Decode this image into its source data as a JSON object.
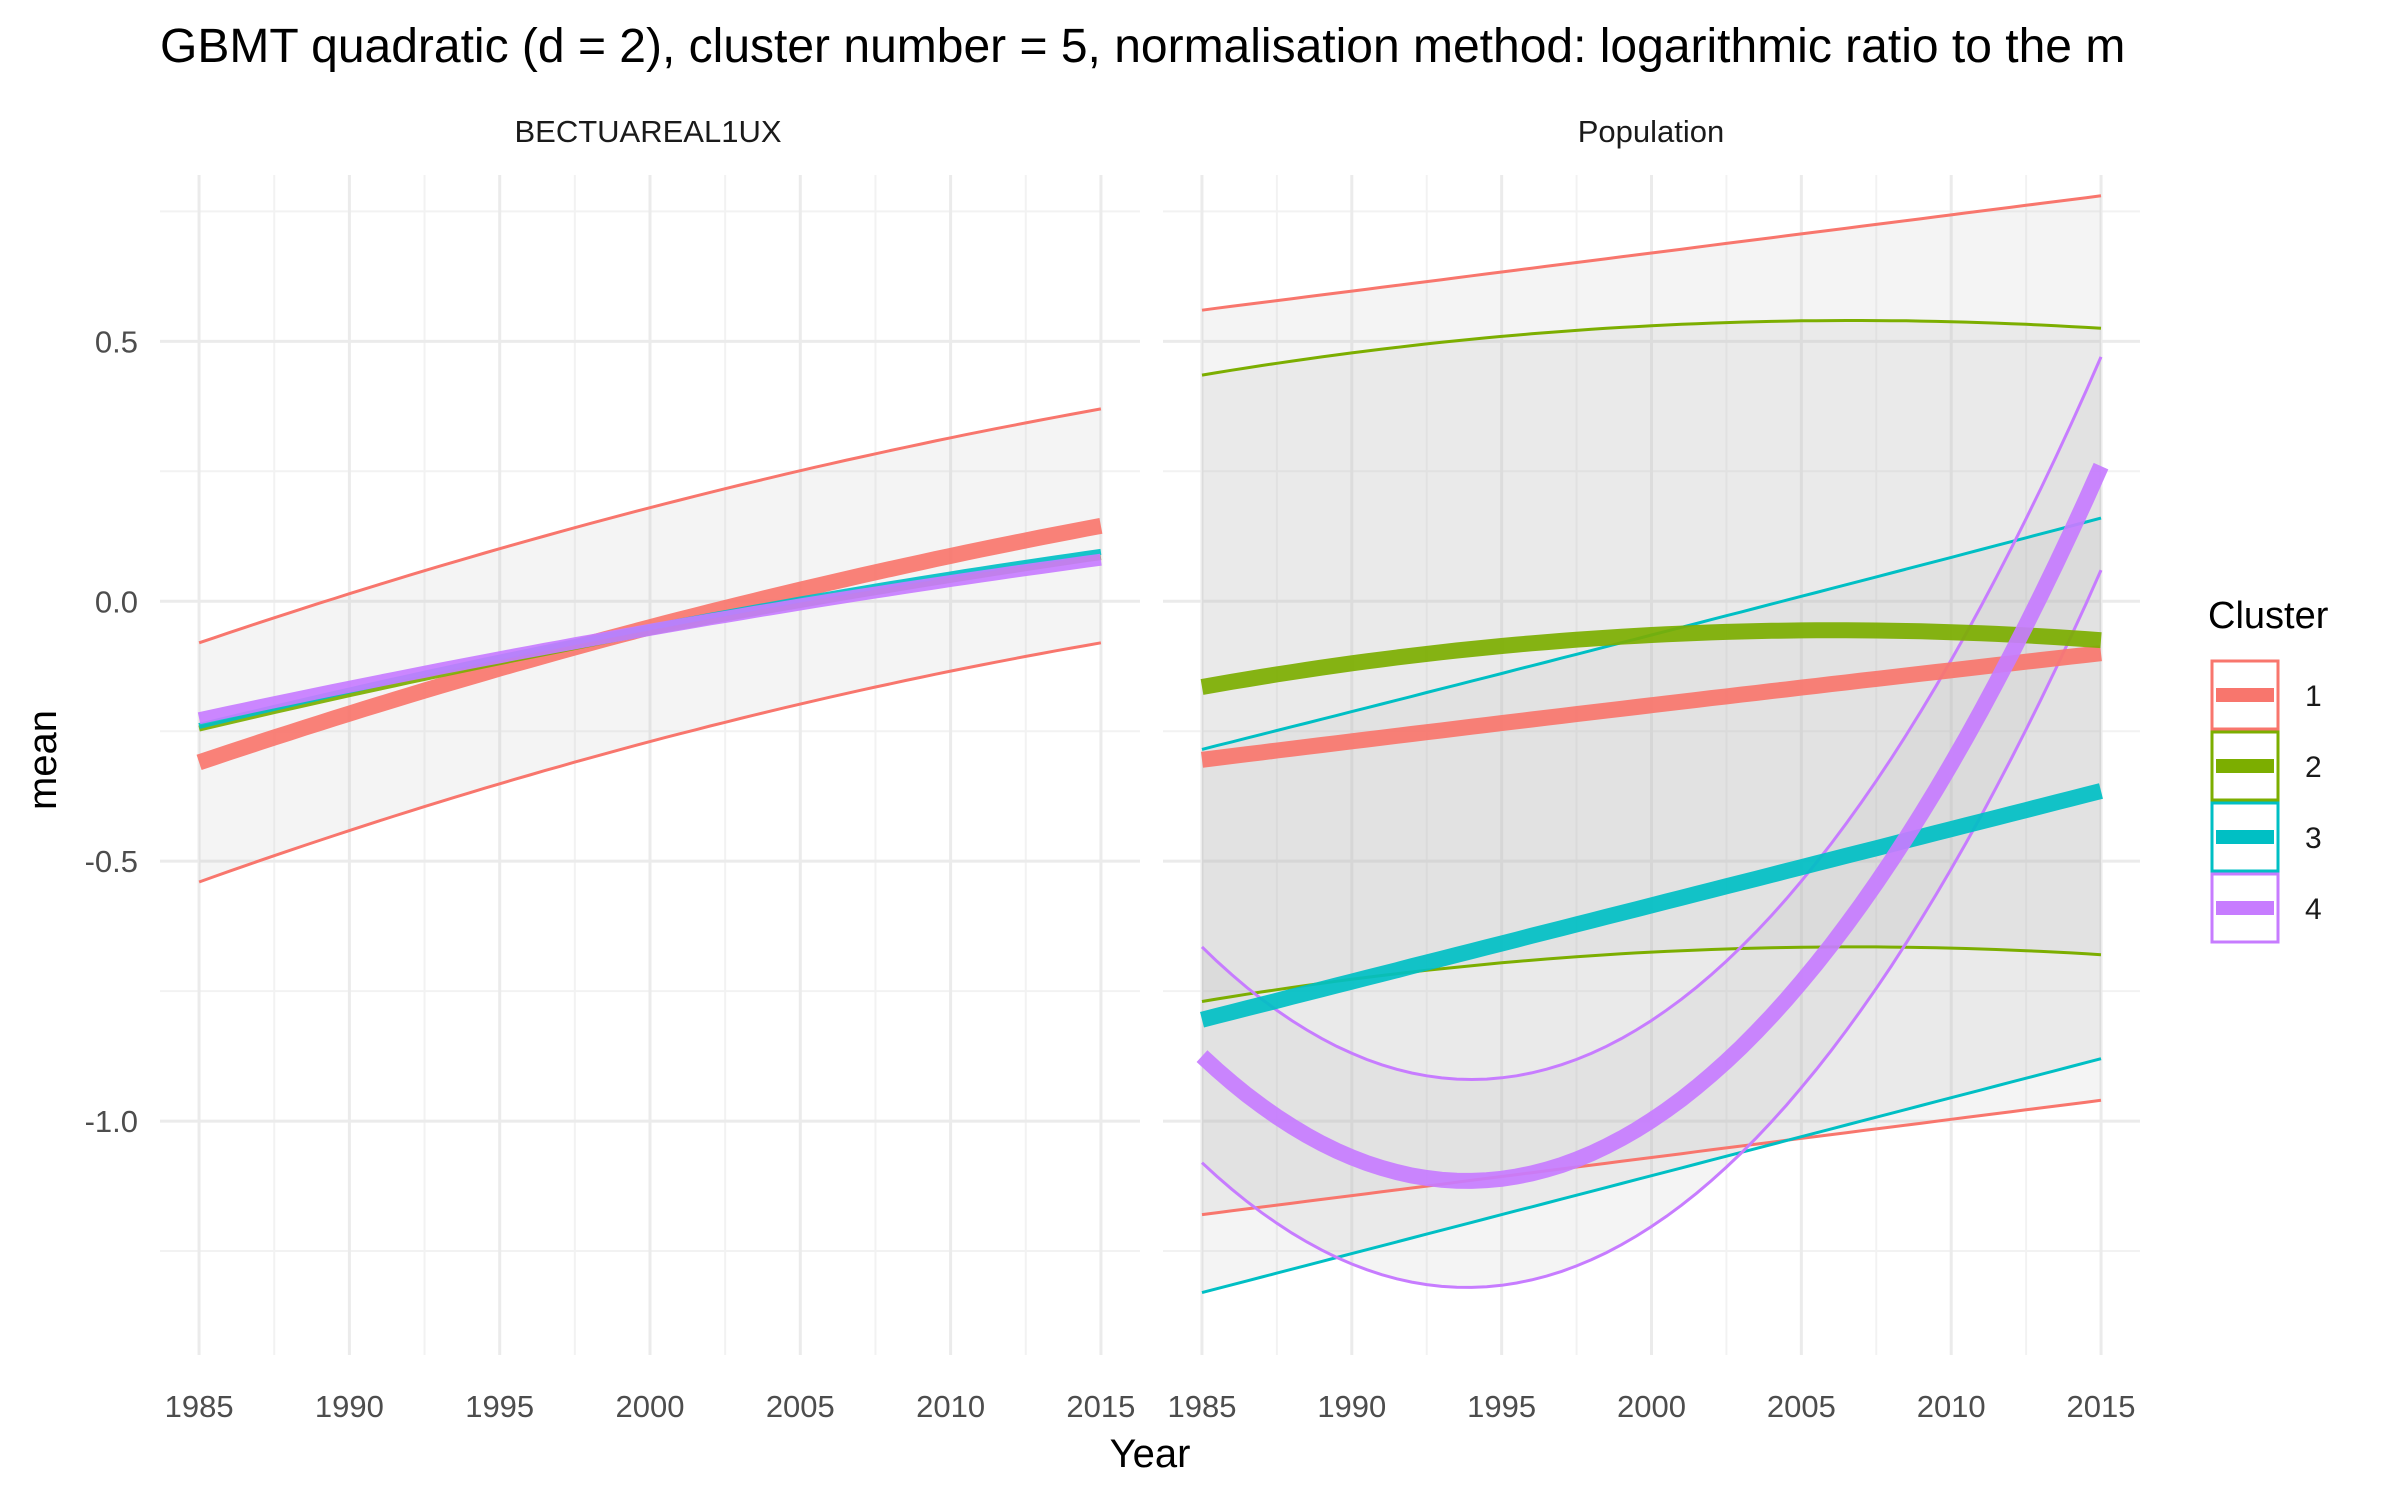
{
  "chart_data": {
    "type": "line",
    "title": "GBMT quadratic (d = 2), cluster number = 5, normalisation method: logarithmic ratio to the m",
    "xlabel": "Year",
    "ylabel": "mean",
    "x_ticks": [
      1985,
      1990,
      1995,
      2000,
      2005,
      2010,
      2015
    ],
    "y_ticks": [
      0.5,
      0.0,
      -0.5,
      -1.0
    ],
    "y_tick_labels": [
      "0.5",
      "0.0",
      "-0.5",
      "-1.0"
    ],
    "xlim": [
      1983.7,
      2016.3
    ],
    "ylim": [
      -1.45,
      0.82
    ],
    "grid": true,
    "legend": {
      "title": "Cluster",
      "position": "right",
      "entries": [
        {
          "label": "1",
          "color": "#F8766D"
        },
        {
          "label": "2",
          "color": "#7CAE00"
        },
        {
          "label": "3",
          "color": "#00BFC4"
        },
        {
          "label": "4",
          "color": "#C77CFF"
        }
      ]
    },
    "panels": [
      {
        "strip": "BECTUAREAL1UX",
        "bands": [
          {
            "cluster": "1",
            "upper": [
              [
                1985,
                -0.08
              ],
              [
                2000,
                0.18
              ],
              [
                2015,
                0.37
              ]
            ],
            "lower": [
              [
                1985,
                -0.54
              ],
              [
                2000,
                -0.27
              ],
              [
                2015,
                -0.08
              ]
            ]
          }
        ],
        "means": [
          {
            "cluster": "1",
            "points": [
              [
                1985,
                -0.31
              ],
              [
                2000,
                -0.05
              ],
              [
                2015,
                0.145
              ]
            ]
          },
          {
            "cluster": "2",
            "points": [
              [
                1985,
                -0.245
              ],
              [
                2000,
                -0.06
              ],
              [
                2015,
                0.085
              ]
            ]
          },
          {
            "cluster": "3",
            "points": [
              [
                1985,
                -0.24
              ],
              [
                2000,
                -0.05
              ],
              [
                2015,
                0.095
              ]
            ]
          },
          {
            "cluster": "4",
            "points": [
              [
                1985,
                -0.225
              ],
              [
                2000,
                -0.055
              ],
              [
                2015,
                0.08
              ]
            ]
          }
        ]
      },
      {
        "strip": "Population",
        "bands": [
          {
            "cluster": "1",
            "upper": [
              [
                1985,
                0.56
              ],
              [
                2000,
                0.67
              ],
              [
                2015,
                0.78
              ]
            ],
            "lower": [
              [
                1985,
                -1.18
              ],
              [
                2000,
                -1.07
              ],
              [
                2015,
                -0.96
              ]
            ]
          },
          {
            "cluster": "2",
            "upper": [
              [
                1985,
                0.435
              ],
              [
                2000,
                0.53
              ],
              [
                2015,
                0.525
              ]
            ],
            "lower": [
              [
                1985,
                -0.77
              ],
              [
                2000,
                -0.675
              ],
              [
                2015,
                -0.68
              ]
            ]
          },
          {
            "cluster": "3",
            "upper": [
              [
                1985,
                -0.285
              ],
              [
                2000,
                -0.065
              ],
              [
                2015,
                0.16
              ]
            ],
            "lower": [
              [
                1985,
                -1.33
              ],
              [
                2000,
                -1.105
              ],
              [
                2015,
                -0.88
              ]
            ]
          },
          {
            "cluster": "4",
            "upper": [
              [
                1985,
                -0.665
              ],
              [
                1994,
                -0.92
              ],
              [
                2015,
                0.47
              ]
            ],
            "lower": [
              [
                1985,
                -1.08
              ],
              [
                1994,
                -1.32
              ],
              [
                2015,
                0.06
              ]
            ]
          }
        ],
        "means": [
          {
            "cluster": "1",
            "points": [
              [
                1985,
                -0.305
              ],
              [
                2000,
                -0.2
              ],
              [
                2015,
                -0.1
              ]
            ]
          },
          {
            "cluster": "2",
            "points": [
              [
                1985,
                -0.165
              ],
              [
                2000,
                -0.065
              ],
              [
                2015,
                -0.075
              ]
            ]
          },
          {
            "cluster": "3",
            "points": [
              [
                1985,
                -0.805
              ],
              [
                2000,
                -0.585
              ],
              [
                2015,
                -0.365
              ]
            ]
          },
          {
            "cluster": "4",
            "points": [
              [
                1985,
                -0.875
              ],
              [
                1994,
                -1.115
              ],
              [
                2015,
                0.26
              ]
            ]
          }
        ]
      }
    ]
  }
}
